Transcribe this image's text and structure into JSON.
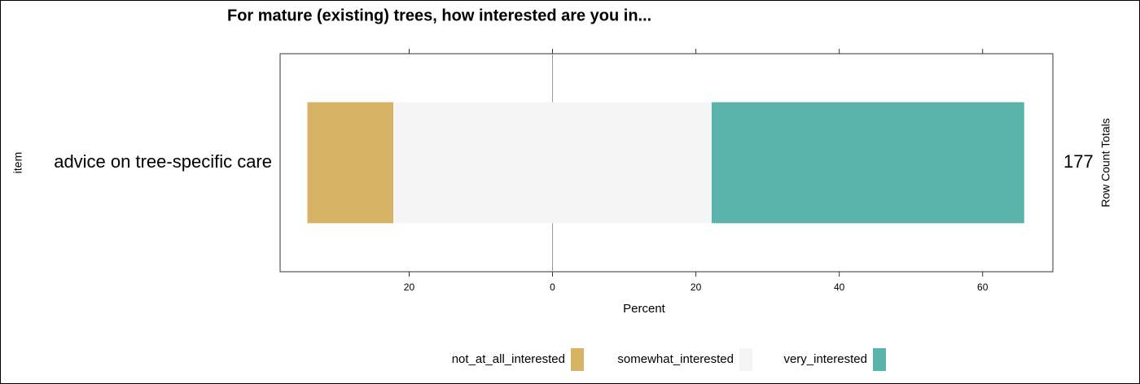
{
  "chart_data": {
    "type": "diverging_bar",
    "title": "For mature (existing) trees, how interested are you in...",
    "categories": [
      "advice on tree-specific care"
    ],
    "series": [
      {
        "name": "not_at_all_interested",
        "color": "#d8b365",
        "values": [
          12.0
        ]
      },
      {
        "name": "somewhat_interested",
        "color": "#f5f5f5",
        "values": [
          44.4
        ]
      },
      {
        "name": "very_interested",
        "color": "#5ab4ac",
        "values": [
          43.6
        ]
      }
    ],
    "xlabel": "Percent",
    "ylabel": "item",
    "right_label": "Row Count Totals",
    "row_totals": [
      177
    ],
    "xlim": [
      -38,
      69.8
    ],
    "xticks": [
      {
        "value": -20,
        "label": "20"
      },
      0,
      20,
      40,
      60
    ]
  }
}
